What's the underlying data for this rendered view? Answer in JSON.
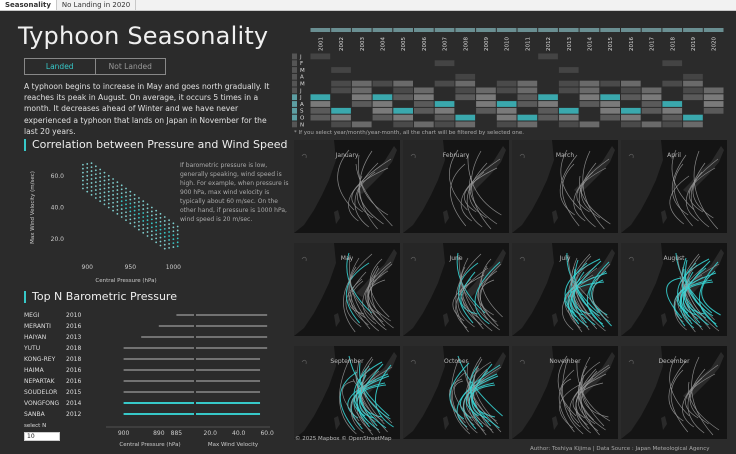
{
  "tabs": [
    "Seasonality",
    "No Landing in 2020"
  ],
  "title": "Typhoon Seasonality",
  "toggle": {
    "on": "Landed",
    "off": "Not Landed"
  },
  "intro": "A typhoon begins to increase in May and goes north gradually. It reaches its peak in August. On average, it occurs 5 times in a month. It decreases ahead of Winter and we have never experienced a typhoon that lands on Japan in November for the last 20 years.",
  "scatter": {
    "title": "Correlation between Pressure and Wind Speed",
    "note": "If barometric pressure is low, generally speaking, wind speed is high. For example, when pressure is 900 hPa, max wind velocity is typically about 60 m/sec. On the other hand, if pressure is 1000 hPa, wind speed is 20 m/sec.",
    "xlabel": "Central Pressure (hPa)",
    "ylabel": "Max Wind Velocity (m/sec)",
    "xticks": [
      "900",
      "950",
      "1000"
    ],
    "yticks": [
      "60.0",
      "40.0",
      "20.0"
    ]
  },
  "topn": {
    "title": "Top N Barometric Pressure",
    "xlabel_left": "Central Pressure (hPa)",
    "xlabel_right": "Max Wind Velocity",
    "xticks_left": [
      "900",
      "890",
      "885"
    ],
    "xticks_right": [
      "20.0",
      "40.0",
      "60.0"
    ],
    "select_label": "select N",
    "select_value": "10"
  },
  "chart_data": [
    {
      "type": "heatmap",
      "x": [
        "2001",
        "2002",
        "2003",
        "2004",
        "2005",
        "2006",
        "2007",
        "2008",
        "2009",
        "2010",
        "2011",
        "2012",
        "2013",
        "2014",
        "2015",
        "2016",
        "2017",
        "2018",
        "2019",
        "2020"
      ],
      "y": [
        "J",
        "F",
        "M",
        "A",
        "M",
        "J",
        "J",
        "A",
        "S",
        "O",
        "N",
        "D"
      ],
      "note": "* If you select year/month/year-month, all the chart will be filtered by selected one."
    },
    {
      "type": "bar",
      "categories": [
        "MEGI",
        "MERANTI",
        "HAIYAN",
        "YUTU",
        "KONG-REY",
        "HAIMA",
        "NEPARTAK",
        "SOUDELOR",
        "VONGFONG",
        "SANBA"
      ],
      "years": [
        "2010",
        "2016",
        "2013",
        "2018",
        "2018",
        "2016",
        "2016",
        "2015",
        "2014",
        "2012"
      ],
      "pressure_values": [
        885,
        890,
        895,
        900,
        900,
        900,
        900,
        900,
        900,
        900
      ],
      "wind_values": [
        60,
        60,
        60,
        60,
        55,
        55,
        55,
        55,
        55,
        55
      ]
    }
  ],
  "maps": {
    "months": [
      "January",
      "February",
      "March",
      "April",
      "May",
      "June",
      "July",
      "August",
      "September",
      "October",
      "November",
      "December"
    ],
    "attribution": "© 2025 Mapbox  © OpenStreetMap"
  },
  "footer": "Author: Toshiya Kijima  |  Data Source : Japan Meteological Agency",
  "colors": {
    "accent": "#37c8c8",
    "background": "#2b2b2b",
    "map": "#141414"
  }
}
